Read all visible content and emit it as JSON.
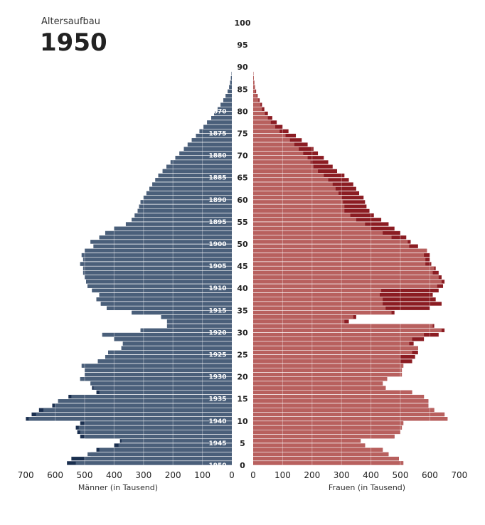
{
  "header": {
    "subtitle": "Altersaufbau",
    "year": "1950"
  },
  "chart_data": {
    "type": "bar",
    "orientation": "horizontal-population-pyramid",
    "xlabel_left": "Männer (in Tausend)",
    "xlabel_right": "Frauen (in Tausend)",
    "x_ticks": [
      "700",
      "600",
      "500",
      "400",
      "300",
      "200",
      "100",
      "0"
    ],
    "x_range": [
      0,
      700
    ],
    "y_range": [
      0,
      100
    ],
    "age_ticks": [
      "0",
      "5",
      "10",
      "15",
      "20",
      "25",
      "30",
      "35",
      "40",
      "45",
      "50",
      "55",
      "60",
      "65",
      "70",
      "75",
      "80",
      "85",
      "90",
      "95",
      "100"
    ],
    "cohort_labels": [
      "1870",
      "1875",
      "1880",
      "1885",
      "1890",
      "1895",
      "1900",
      "1905",
      "1910",
      "1915",
      "1920",
      "1925",
      "1930",
      "1935",
      "1940",
      "1945",
      "1950"
    ],
    "grid": true,
    "colors": {
      "men": "#4a5f7a",
      "men_surplus": "#1a2f4f",
      "women": "#b8605e",
      "women_surplus": "#8b1c22"
    },
    "ages": [
      0,
      1,
      2,
      3,
      4,
      5,
      6,
      7,
      8,
      9,
      10,
      11,
      12,
      13,
      14,
      15,
      16,
      17,
      18,
      19,
      20,
      21,
      22,
      23,
      24,
      25,
      26,
      27,
      28,
      29,
      30,
      31,
      32,
      33,
      34,
      35,
      36,
      37,
      38,
      39,
      40,
      41,
      42,
      43,
      44,
      45,
      46,
      47,
      48,
      49,
      50,
      51,
      52,
      53,
      54,
      55,
      56,
      57,
      58,
      59,
      60,
      61,
      62,
      63,
      64,
      65,
      66,
      67,
      68,
      69,
      70,
      71,
      72,
      73,
      74,
      75,
      76,
      77,
      78,
      79,
      80,
      81,
      82,
      83,
      84,
      85,
      86,
      87,
      88,
      89,
      90
    ],
    "men": [
      530,
      500,
      490,
      450,
      385,
      375,
      500,
      515,
      520,
      500,
      690,
      665,
      640,
      600,
      590,
      545,
      450,
      470,
      480,
      515,
      500,
      500,
      510,
      455,
      430,
      420,
      375,
      370,
      400,
      440,
      310,
      220,
      220,
      240,
      340,
      425,
      445,
      460,
      450,
      475,
      490,
      495,
      500,
      505,
      505,
      515,
      505,
      510,
      500,
      470,
      480,
      450,
      430,
      400,
      360,
      340,
      330,
      320,
      315,
      310,
      300,
      290,
      280,
      270,
      260,
      250,
      235,
      222,
      208,
      192,
      178,
      163,
      150,
      136,
      122,
      110,
      96,
      84,
      70,
      60,
      48,
      38,
      29,
      21,
      14,
      9,
      6,
      3,
      1,
      0,
      0
    ],
    "women": [
      510,
      495,
      460,
      440,
      380,
      365,
      480,
      500,
      505,
      510,
      660,
      650,
      615,
      595,
      595,
      580,
      540,
      450,
      440,
      455,
      505,
      505,
      510,
      500,
      500,
      540,
      560,
      530,
      540,
      580,
      640,
      610,
      310,
      340,
      470,
      450,
      440,
      440,
      430,
      435,
      625,
      640,
      630,
      610,
      615,
      585,
      585,
      580,
      590,
      530,
      525,
      470,
      440,
      400,
      380,
      350,
      330,
      310,
      310,
      305,
      300,
      290,
      280,
      270,
      255,
      240,
      220,
      205,
      195,
      185,
      170,
      155,
      140,
      125,
      110,
      90,
      75,
      60,
      50,
      40,
      30,
      25,
      18,
      12,
      8,
      5,
      3,
      2,
      1,
      0,
      0
    ],
    "men_surplus": [
      560,
      545,
      480,
      460,
      400,
      380,
      515,
      525,
      530,
      515,
      700,
      680,
      655,
      610,
      590,
      555,
      460,
      475,
      480,
      515,
      500,
      500,
      510,
      455,
      430,
      420,
      375,
      370,
      400,
      440,
      310,
      220,
      220,
      240,
      340,
      425,
      445,
      460,
      450,
      475,
      490,
      495,
      500,
      505,
      505,
      515,
      505,
      510,
      500,
      470,
      480,
      450,
      430,
      400,
      360,
      340,
      330,
      320,
      315,
      310,
      300,
      290,
      280,
      270,
      260,
      250,
      235,
      222,
      208,
      192,
      178,
      163,
      150,
      136,
      122,
      110,
      96,
      84,
      70,
      60,
      48,
      38,
      29,
      21,
      14,
      9,
      6,
      3,
      1,
      0,
      0
    ],
    "women_surplus": [
      510,
      495,
      460,
      440,
      380,
      365,
      480,
      500,
      505,
      510,
      660,
      650,
      615,
      595,
      595,
      580,
      540,
      450,
      440,
      455,
      505,
      505,
      510,
      540,
      550,
      560,
      560,
      545,
      580,
      630,
      650,
      615,
      325,
      350,
      480,
      600,
      640,
      620,
      610,
      630,
      645,
      650,
      640,
      630,
      620,
      605,
      600,
      600,
      590,
      560,
      535,
      520,
      500,
      480,
      460,
      435,
      410,
      395,
      385,
      380,
      375,
      360,
      350,
      340,
      325,
      310,
      285,
      270,
      255,
      240,
      220,
      205,
      185,
      165,
      145,
      120,
      100,
      80,
      65,
      50,
      38,
      30,
      22,
      15,
      10,
      6,
      4,
      2,
      1,
      0,
      0
    ]
  }
}
